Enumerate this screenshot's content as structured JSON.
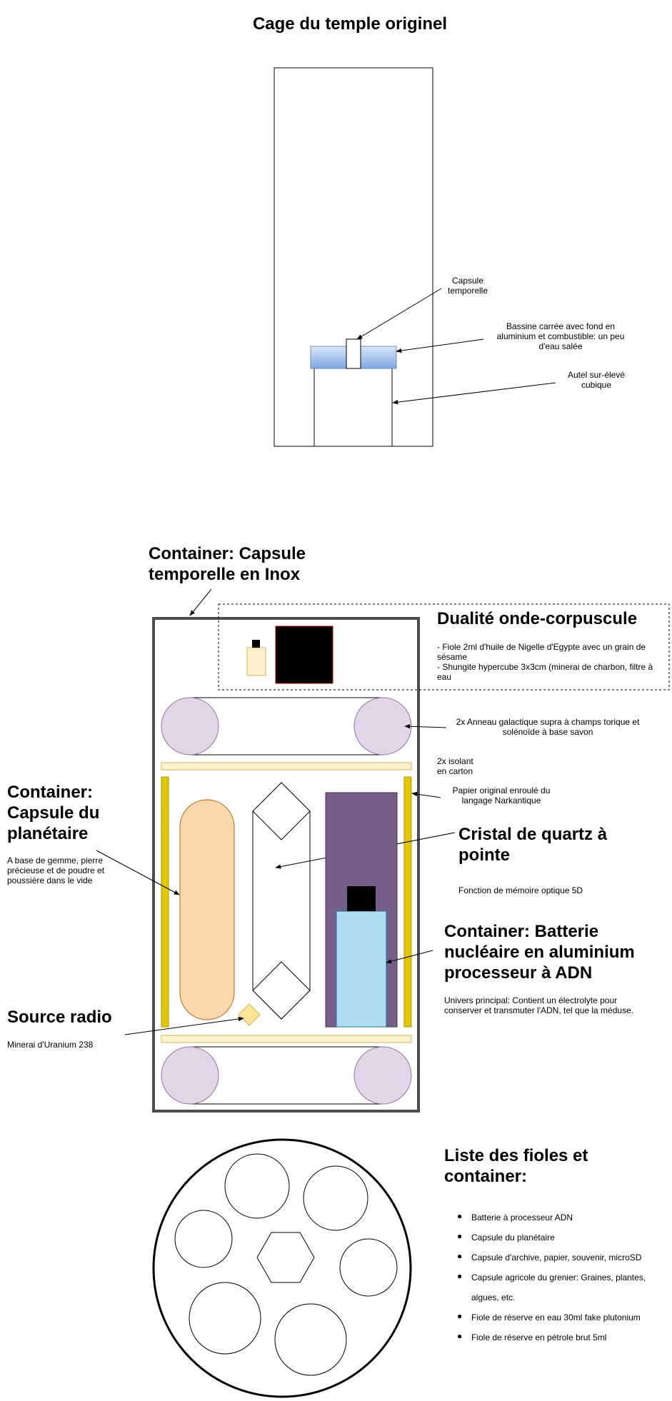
{
  "top": {
    "title": "Cage du temple originel",
    "capsule_label": "Capsule temporelle",
    "basin_label": "Bassine carrée avec fond en aluminium et combustible: un peu d'eau salée",
    "altar_label": "Autel sur-élevé cubique"
  },
  "container_inox": {
    "title": "Container: Capsule temporelle en Inox"
  },
  "dualite": {
    "title": "Dualité onde-corpuscule",
    "desc_line1": "- Fiole 2ml d'huile de Nigelle d'Egypte avec un grain de sésame",
    "desc_line2": "- Shungite hypercube 3x3cm (minerai de charbon, filtre à eau"
  },
  "labels": {
    "anneau": "2x Anneau galactique supra à champs torique et solénoïde à base savon",
    "isolant": "2x isolant en carton",
    "papier": "Papier original enroulé du langage Narkantique"
  },
  "planetaire": {
    "title": "Container: Capsule du planétaire",
    "desc": "A base de gemme, pierre précieuse et de poudre et poussière dans le vide"
  },
  "quartz": {
    "title": "Cristal de quartz à pointe",
    "desc": "Fonction de mémoire optique 5D"
  },
  "batterie": {
    "title": "Container: Batterie nucléaire en aluminium processeur à ADN",
    "desc": "Univers principal: Contient un électrolyte pour conserver et transmuter l'ADN, tel que la méduse."
  },
  "source": {
    "title": "Source radio",
    "desc": "Minerai d'Uranium 238"
  },
  "liste": {
    "title": "Liste des fioles et container:",
    "items": [
      "Batterie à processeur ADN",
      "Capsule du planétaire",
      "Capsule d'archive, papier, souvenir, microSD",
      "Capsule agricole du grenier: Graines, plantes, algues, etc.",
      "Fiole de réserve en eau 30ml fake plutonium",
      "Fiole de réserve en pétrole brut 5ml"
    ]
  },
  "colors": {
    "lavender": "#e1d5e7",
    "cream": "#fff2cc",
    "yellow": "#e3c800",
    "peach": "#fad7ac",
    "purple": "#76608a",
    "lightblue": "#b1ddf0",
    "basin_top": "#6c8ebf",
    "basin_bottom": "#dae8fc"
  }
}
